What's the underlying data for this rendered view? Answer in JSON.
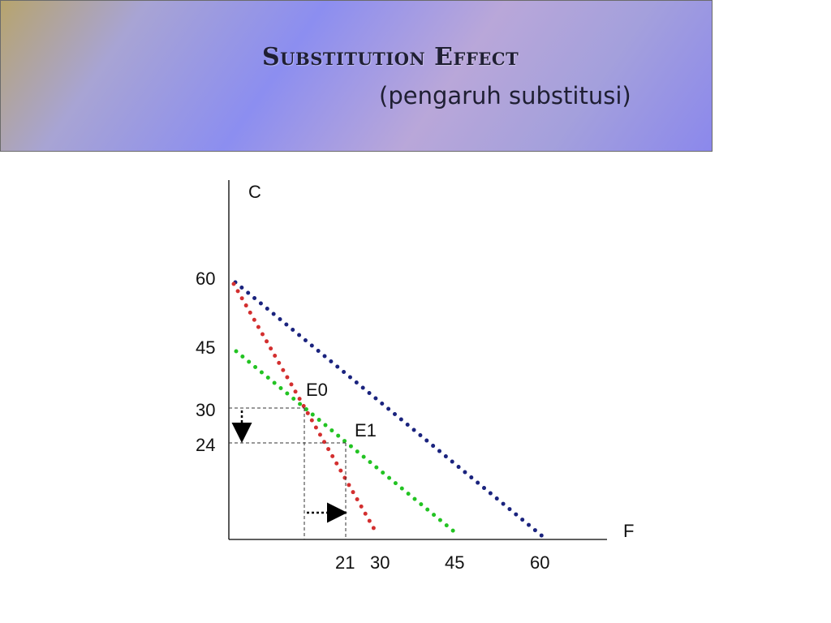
{
  "title": {
    "main": "Substitution Effect",
    "sub": "(pengaruh substitusi)"
  },
  "axes": {
    "y_label": "C",
    "x_label": "F"
  },
  "y_ticks": [
    "60",
    "45",
    "30",
    "24"
  ],
  "x_ticks": [
    "21",
    "30",
    "45",
    "60"
  ],
  "points": {
    "e0": "E0",
    "e1": "E1"
  },
  "lines": [
    {
      "id": "original-budget",
      "color": "#1a237e",
      "from": [
        0,
        60
      ],
      "to": [
        60,
        0
      ]
    },
    {
      "id": "new-budget",
      "color": "#d32f2f",
      "from": [
        0,
        60
      ],
      "to": [
        30,
        0
      ]
    },
    {
      "id": "compensated-budget",
      "color": "#22c322",
      "from": [
        0,
        45
      ],
      "to": [
        45,
        0
      ]
    }
  ],
  "equilibria": {
    "e0": [
      15,
      30
    ],
    "e1": [
      21,
      24
    ]
  }
}
